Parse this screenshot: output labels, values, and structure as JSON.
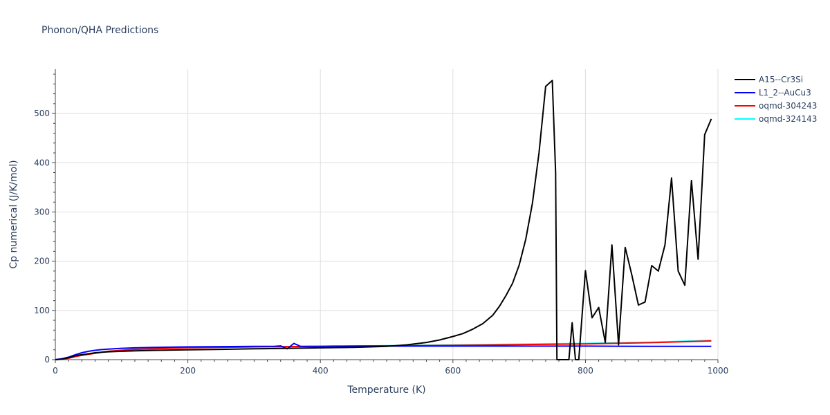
{
  "chart_data": {
    "type": "line",
    "title": "Phonon/QHA Predictions",
    "xlabel": "Temperature (K)",
    "ylabel": "Cp numerical (J/K/mol)",
    "xlim": [
      0,
      1000
    ],
    "ylim": [
      0,
      590
    ],
    "xticks": [
      0,
      200,
      400,
      600,
      800,
      1000
    ],
    "yticks": [
      0,
      100,
      200,
      300,
      400,
      500
    ],
    "grid": true,
    "legend": "top-right",
    "series": [
      {
        "name": "A15--Cr3Si",
        "color": "#000000",
        "x": [
          0,
          10,
          20,
          30,
          40,
          50,
          60,
          70,
          80,
          100,
          120,
          150,
          200,
          250,
          300,
          350,
          400,
          450,
          500,
          530,
          560,
          580,
          600,
          615,
          630,
          645,
          660,
          670,
          680,
          690,
          700,
          710,
          720,
          730,
          740,
          750,
          755,
          757,
          775,
          780,
          785,
          790,
          800,
          810,
          820,
          830,
          840,
          850,
          860,
          870,
          880,
          890,
          900,
          910,
          920,
          930,
          940,
          950,
          960,
          970,
          980,
          990
        ],
        "y": [
          0,
          1,
          4,
          8,
          10,
          12,
          14,
          15,
          16,
          17,
          18,
          19,
          20,
          21,
          22,
          23,
          24,
          25,
          27,
          30,
          35,
          40,
          47,
          53,
          62,
          73,
          90,
          108,
          130,
          155,
          192,
          245,
          318,
          420,
          555,
          567,
          380,
          0,
          0,
          75,
          0,
          0,
          181,
          85,
          106,
          35,
          233,
          30,
          228,
          172,
          111,
          117,
          191,
          180,
          233,
          369,
          180,
          151,
          364,
          204,
          457,
          489
        ]
      },
      {
        "name": "L1_2--AuCu3",
        "color": "#0000ff",
        "x": [
          0,
          10,
          20,
          30,
          40,
          50,
          60,
          70,
          80,
          100,
          120,
          150,
          200,
          250,
          300,
          330,
          340,
          350,
          360,
          370,
          400,
          450,
          500,
          550,
          600,
          700,
          800,
          900,
          990
        ],
        "y": [
          0,
          2,
          5,
          10,
          14,
          17,
          19,
          20.5,
          21.5,
          23,
          24,
          25,
          26,
          26.5,
          27,
          27,
          28,
          22,
          33,
          27,
          27,
          27.5,
          27.5,
          27.5,
          27.5,
          27.5,
          27.5,
          27,
          27
        ]
      },
      {
        "name": "oqmd-304243",
        "color": "#ff0000",
        "x": [
          0,
          10,
          20,
          30,
          40,
          50,
          60,
          70,
          80,
          100,
          120,
          150,
          200,
          250,
          300,
          350,
          400,
          450,
          500,
          600,
          700,
          800,
          900,
          990
        ],
        "y": [
          0,
          1,
          3,
          6,
          9,
          11,
          13,
          15,
          17,
          19,
          21,
          22,
          24,
          25,
          26,
          26.5,
          27,
          27.5,
          28,
          29,
          30.5,
          32,
          34.5,
          38
        ]
      },
      {
        "name": "oqmd-324143",
        "color": "#00ffff",
        "x": [
          0,
          10,
          20,
          30,
          40,
          50,
          60,
          70,
          80,
          100,
          120,
          150,
          200,
          250,
          300,
          350,
          400,
          420,
          450,
          500,
          600,
          700,
          800,
          900,
          990
        ],
        "y": [
          0,
          1,
          3,
          6,
          9,
          11,
          13,
          15,
          17,
          19,
          21,
          22.5,
          24,
          25,
          26,
          26.5,
          27,
          28,
          27.5,
          28.5,
          30,
          31.5,
          33,
          35.5,
          39
        ]
      }
    ]
  }
}
